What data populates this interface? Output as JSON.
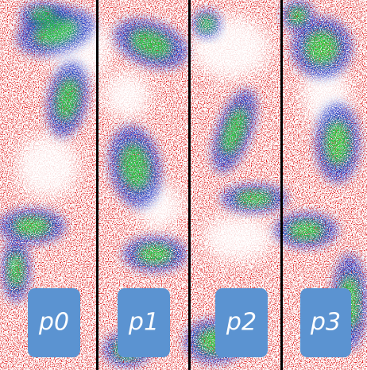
{
  "panels": [
    {
      "label": "p0"
    },
    {
      "label": "p1"
    },
    {
      "label": "p2"
    },
    {
      "label": "p3"
    }
  ]
}
